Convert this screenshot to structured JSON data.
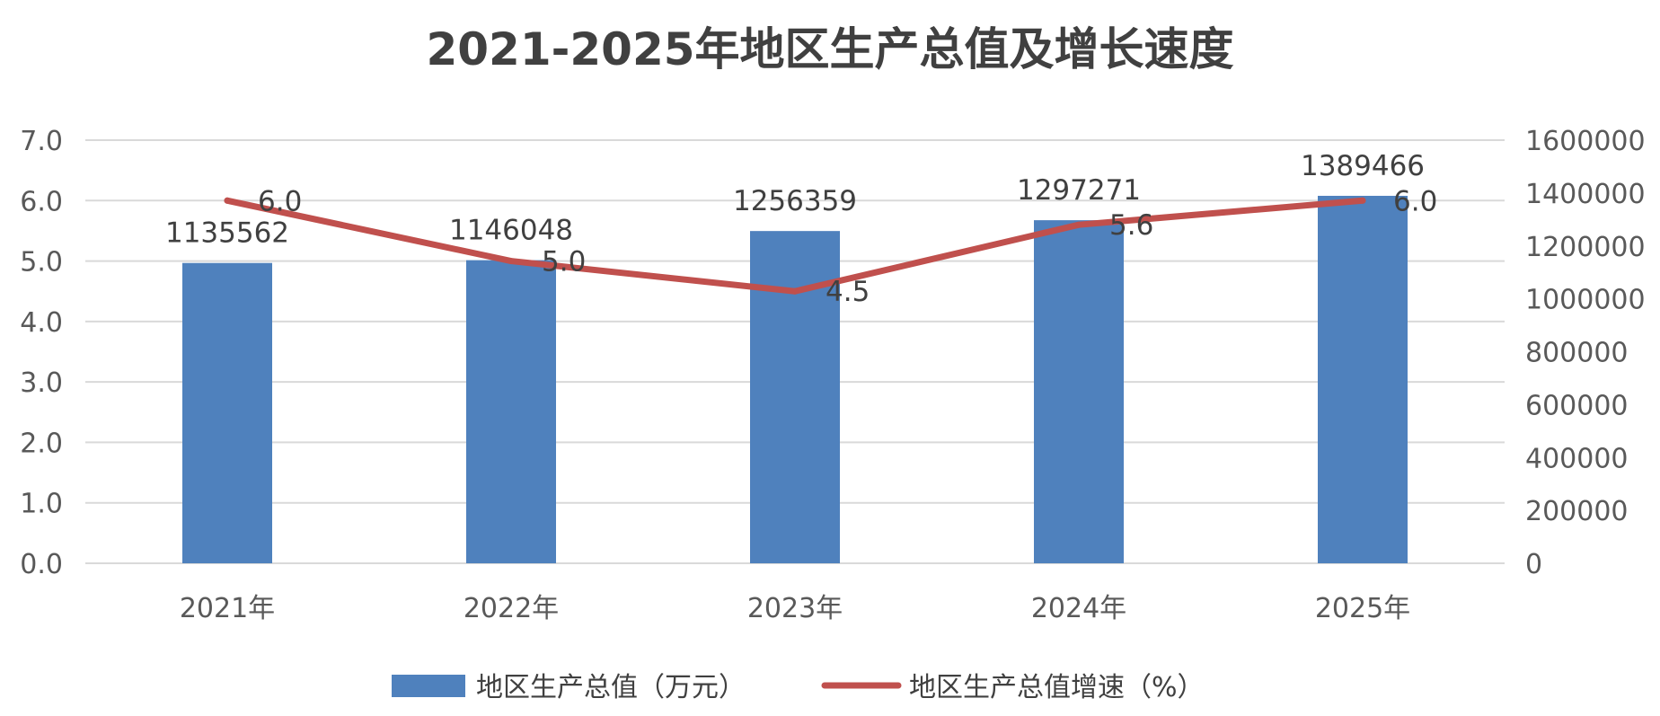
{
  "chart_data": {
    "type": "bar",
    "title": "2021-2025年地区生产总值及增长速度",
    "categories": [
      "2021年",
      "2022年",
      "2023年",
      "2024年",
      "2025年"
    ],
    "series": [
      {
        "name": "地区生产总值（万元）",
        "chart_type": "bar",
        "axis": "right",
        "color": "#4f81bd",
        "values": [
          1135562,
          1146048,
          1256359,
          1297271,
          1389466
        ]
      },
      {
        "name": "地区生产总值增速（%）",
        "chart_type": "line",
        "axis": "left",
        "color": "#c0504d",
        "values": [
          6.0,
          5.0,
          4.5,
          5.6,
          6.0
        ]
      }
    ],
    "y_left": {
      "ylim": [
        0,
        7
      ],
      "ticks": [
        "0.0",
        "1.0",
        "2.0",
        "3.0",
        "4.0",
        "5.0",
        "6.0",
        "7.0"
      ]
    },
    "y_right": {
      "ylim": [
        0,
        1600000
      ],
      "ticks": [
        "0",
        "200000",
        "400000",
        "600000",
        "800000",
        "1000000",
        "1200000",
        "1400000",
        "1600000"
      ]
    },
    "grid": true,
    "legend_position": "bottom"
  }
}
